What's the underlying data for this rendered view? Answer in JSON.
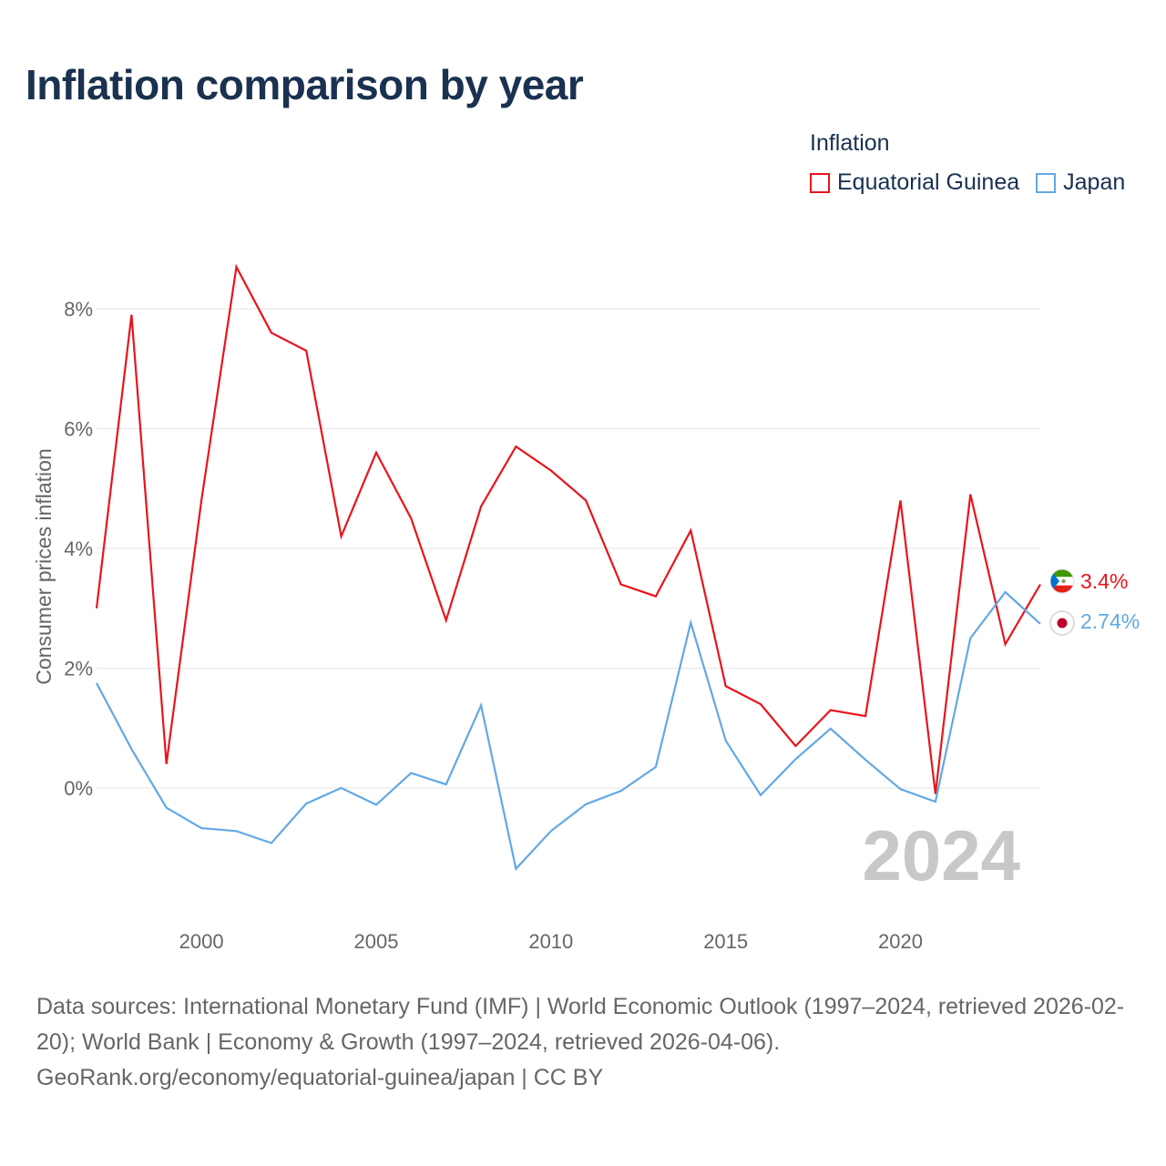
{
  "title": "Inflation comparison by year",
  "legend": {
    "title": "Inflation",
    "items": [
      {
        "label": "Equatorial Guinea",
        "color": "#e8141c"
      },
      {
        "label": "Japan",
        "color": "#62a8e5"
      }
    ]
  },
  "year_watermark": "2024",
  "end_labels": {
    "equatorial_guinea": "3.4%",
    "japan": "2.74%"
  },
  "footer": {
    "line1": "Data sources: International Monetary Fund (IMF) | World Economic Outlook (1997–2024, retrieved 2026-02-20); World Bank | Economy & Growth (1997–2024, retrieved 2026-04-06).",
    "line2": "GeoRank.org/economy/equatorial-guinea/japan | CC BY"
  },
  "chart_data": {
    "type": "line",
    "title": "Inflation comparison by year",
    "xlabel": "",
    "ylabel": "Consumer prices inflation",
    "xlim": [
      1997,
      2024
    ],
    "ylim": [
      -2,
      9
    ],
    "y_ticks": [
      0,
      2,
      4,
      6,
      8
    ],
    "y_tick_labels": [
      "0%",
      "2%",
      "4%",
      "6%",
      "8%"
    ],
    "x_ticks": [
      2000,
      2005,
      2010,
      2015,
      2020
    ],
    "x_tick_labels": [
      "2000",
      "2005",
      "2010",
      "2015",
      "2020"
    ],
    "grid": true,
    "legend_position": "top-right",
    "x": [
      1997,
      1998,
      1999,
      2000,
      2001,
      2002,
      2003,
      2004,
      2005,
      2006,
      2007,
      2008,
      2009,
      2010,
      2011,
      2012,
      2013,
      2014,
      2015,
      2016,
      2017,
      2018,
      2019,
      2020,
      2021,
      2022,
      2023,
      2024
    ],
    "series": [
      {
        "name": "Equatorial Guinea",
        "color": "#e8141c",
        "values": [
          3.0,
          7.9,
          0.4,
          4.8,
          8.7,
          7.6,
          7.3,
          4.2,
          5.6,
          4.5,
          2.8,
          4.7,
          5.7,
          5.3,
          4.8,
          3.4,
          3.2,
          4.3,
          1.7,
          1.4,
          0.7,
          1.3,
          1.2,
          4.8,
          -0.1,
          4.9,
          2.4,
          3.4
        ]
      },
      {
        "name": "Japan",
        "color": "#62a8e5",
        "values": [
          1.75,
          0.65,
          -0.33,
          -0.67,
          -0.72,
          -0.92,
          -0.26,
          0.0,
          -0.28,
          0.25,
          0.06,
          1.38,
          -1.35,
          -0.72,
          -0.27,
          -0.05,
          0.35,
          2.76,
          0.79,
          -0.12,
          0.48,
          0.99,
          0.47,
          -0.02,
          -0.23,
          2.5,
          3.27,
          2.74
        ]
      }
    ]
  }
}
